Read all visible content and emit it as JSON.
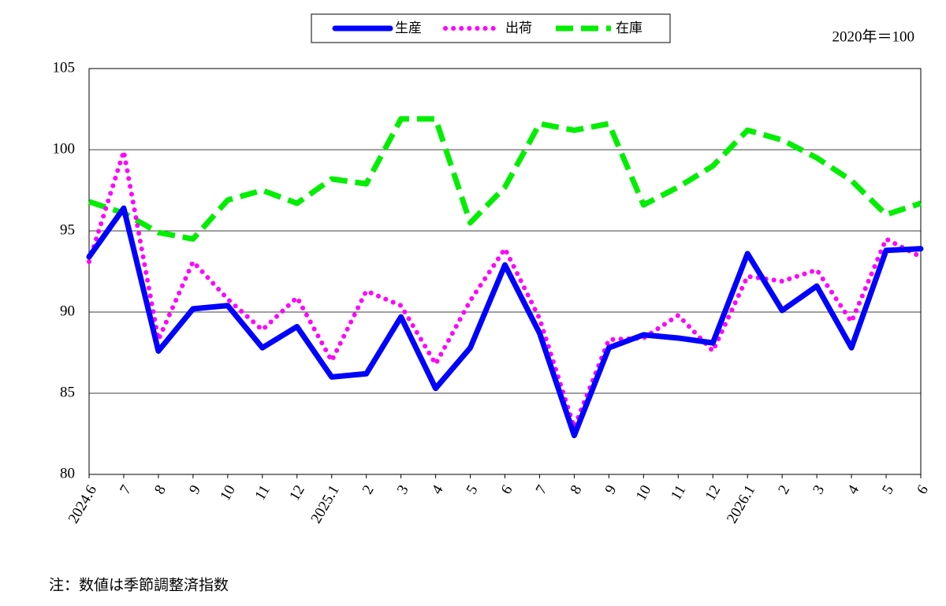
{
  "chart_data": {
    "type": "line",
    "unit_note": "2020年＝100",
    "footnote": "注：数値は季節調整済指数",
    "categories": [
      "2024.6",
      "7",
      "8",
      "9",
      "10",
      "11",
      "12",
      "2025.1",
      "2",
      "3",
      "4",
      "5",
      "6",
      "7",
      "8",
      "9",
      "10",
      "11",
      "12",
      "2026.1",
      "2",
      "3",
      "4",
      "5",
      "6"
    ],
    "series": [
      {
        "name": "生産",
        "color": "#0000ff",
        "dash": "solid",
        "values": [
          93.4,
          96.4,
          87.6,
          90.2,
          90.4,
          87.8,
          89.1,
          86.0,
          86.2,
          89.7,
          85.3,
          87.8,
          92.9,
          88.7,
          82.4,
          87.8,
          88.6,
          88.4,
          88.1,
          93.6,
          90.1,
          91.6,
          87.8,
          93.8,
          93.9
        ]
      },
      {
        "name": "出荷",
        "color": "#ff00ff",
        "dash": "dotted",
        "values": [
          93.1,
          99.9,
          88.3,
          93.1,
          90.8,
          88.9,
          90.9,
          87.0,
          91.3,
          90.4,
          86.8,
          90.7,
          93.9,
          89.6,
          82.9,
          88.3,
          88.4,
          89.8,
          87.6,
          92.2,
          91.9,
          92.6,
          89.4,
          94.5,
          93.4
        ]
      },
      {
        "name": "在庫",
        "color": "#00ee00",
        "dash": "dashed",
        "values": [
          96.8,
          96.1,
          94.9,
          94.5,
          96.9,
          97.5,
          96.7,
          98.2,
          97.9,
          101.9,
          101.9,
          95.5,
          97.7,
          101.6,
          101.2,
          101.6,
          96.6,
          97.7,
          99.0,
          101.2,
          100.6,
          99.5,
          98.1,
          96.0,
          96.7
        ]
      }
    ],
    "ylim": [
      80,
      105
    ],
    "yticks": [
      80,
      85,
      90,
      95,
      100,
      105
    ],
    "grid": true
  }
}
